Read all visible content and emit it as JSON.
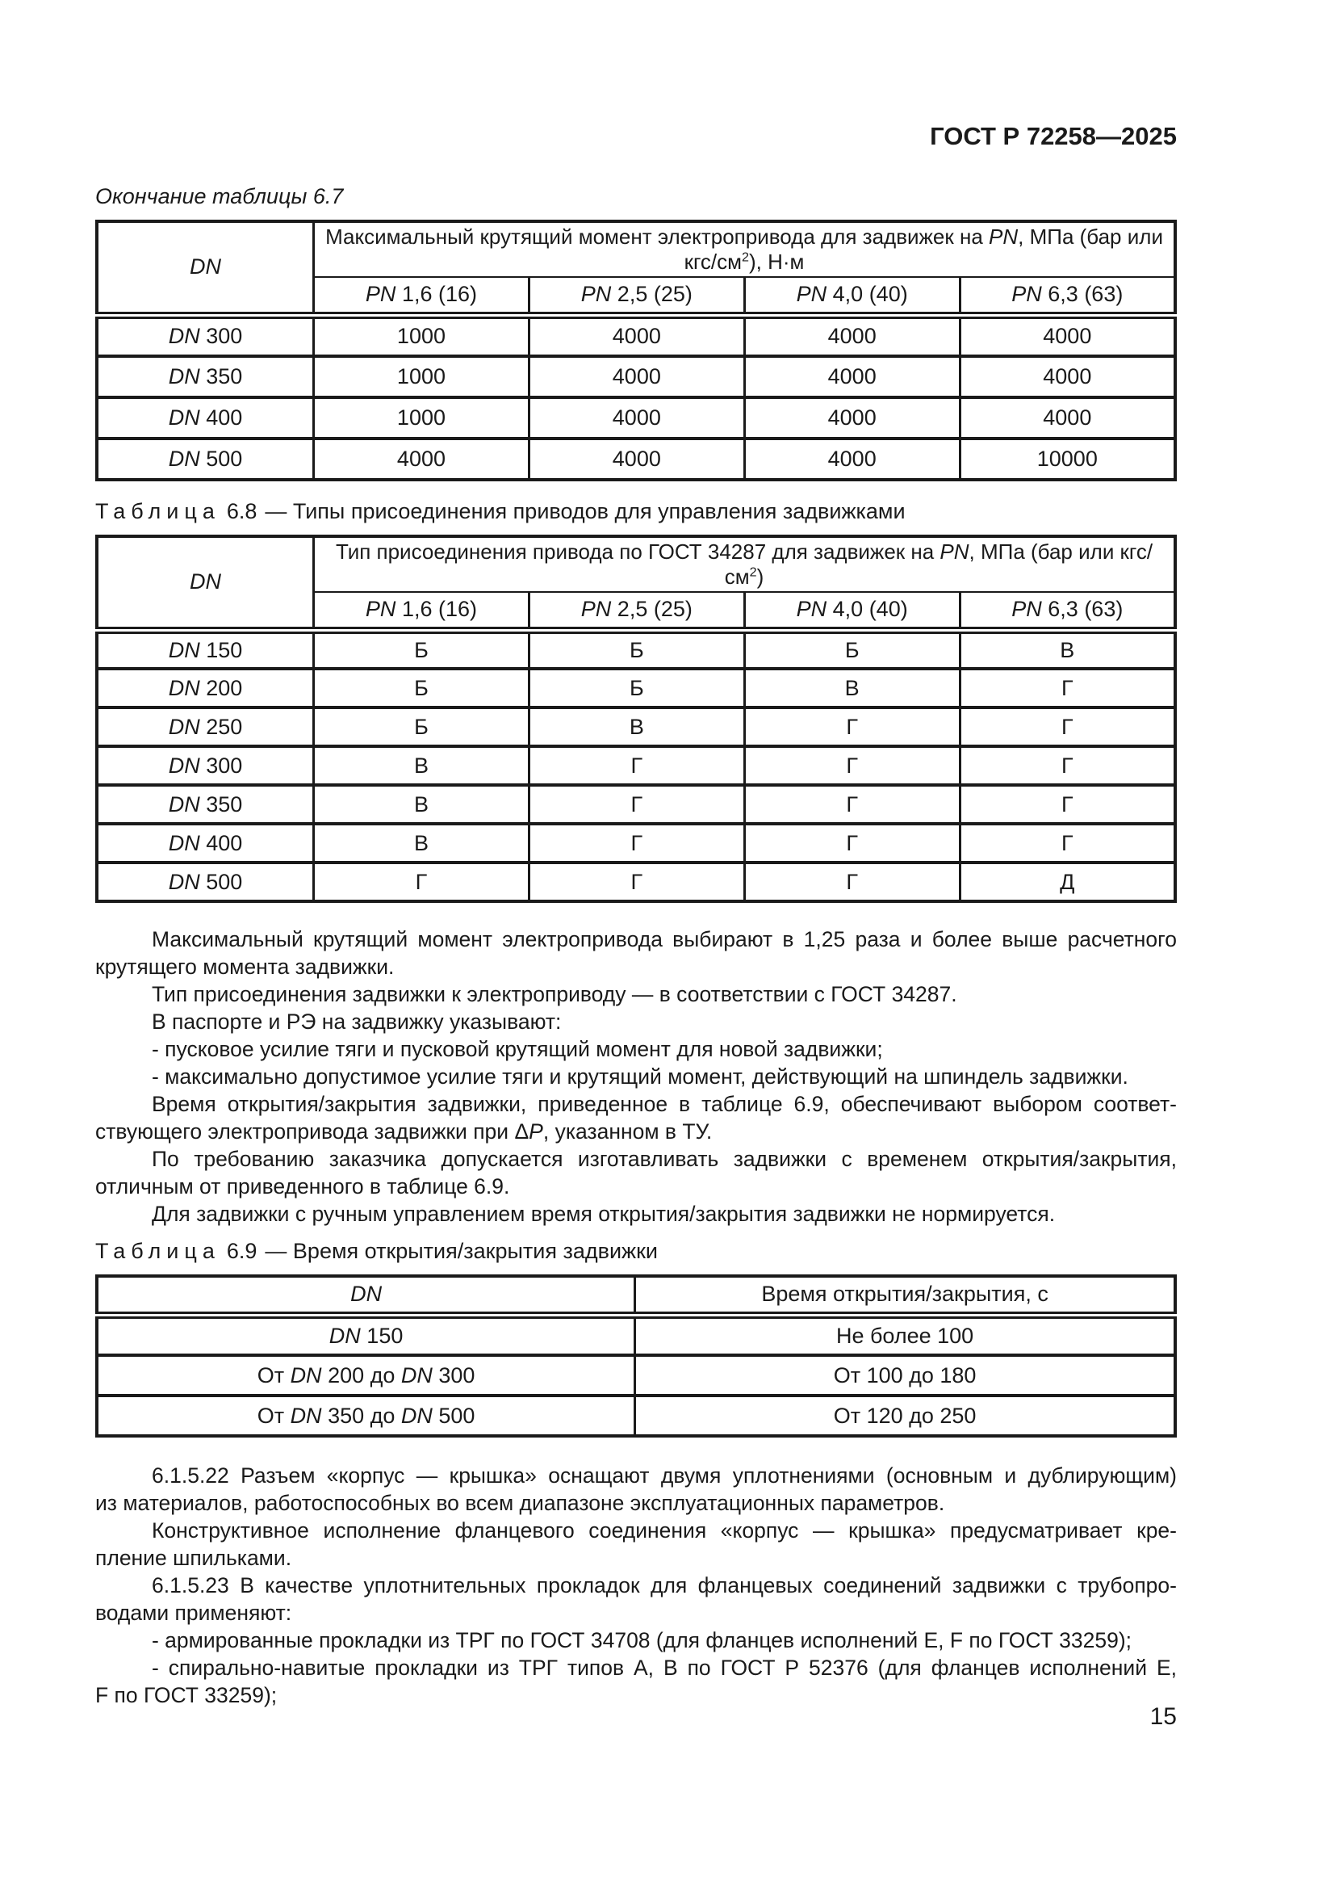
{
  "page": {
    "doc_code": "ГОСТ Р 72258—2025",
    "page_number": "15"
  },
  "labels": {
    "dn": "DN",
    "pn": "PN"
  },
  "table67": {
    "continuation_caption": "Окончание таблицы 6.7",
    "dn_header": "DN",
    "span_header": [
      {
        "t": "Максимальный крутящий момент электропривода для задвижек на "
      },
      {
        "t": "PN",
        "s": "i"
      },
      {
        "t": ", МПа (бар или кгс/см"
      },
      {
        "t": "2",
        "s": "sup"
      },
      {
        "t": "), Н·м"
      }
    ],
    "pn_columns": [
      "1,6 (16)",
      "2,5 (25)",
      "4,0 (40)",
      "6,3 (63)"
    ],
    "rows": [
      {
        "dn": "300",
        "values": [
          "1000",
          "4000",
          "4000",
          "4000"
        ]
      },
      {
        "dn": "350",
        "values": [
          "1000",
          "4000",
          "4000",
          "4000"
        ]
      },
      {
        "dn": "400",
        "values": [
          "1000",
          "4000",
          "4000",
          "4000"
        ]
      },
      {
        "dn": "500",
        "values": [
          "4000",
          "4000",
          "4000",
          "10000"
        ]
      }
    ]
  },
  "table68": {
    "caption_word": "Таблица",
    "caption_num": "6.8",
    "caption_rest": "— Типы присоединения приводов для управления задвижками",
    "dn_header": "DN",
    "span_header": [
      {
        "t": "Тип присоединения привода по ГОСТ 34287 для задвижек на "
      },
      {
        "t": "PN",
        "s": "i"
      },
      {
        "t": ", МПа (бар или кгс/см"
      },
      {
        "t": "2",
        "s": "sup"
      },
      {
        "t": ")"
      }
    ],
    "pn_columns": [
      "1,6 (16)",
      "2,5 (25)",
      "4,0 (40)",
      "6,3 (63)"
    ],
    "rows": [
      {
        "dn": "150",
        "values": [
          "Б",
          "Б",
          "Б",
          "В"
        ]
      },
      {
        "dn": "200",
        "values": [
          "Б",
          "Б",
          "В",
          "Г"
        ]
      },
      {
        "dn": "250",
        "values": [
          "Б",
          "В",
          "Г",
          "Г"
        ]
      },
      {
        "dn": "300",
        "values": [
          "В",
          "Г",
          "Г",
          "Г"
        ]
      },
      {
        "dn": "350",
        "values": [
          "В",
          "Г",
          "Г",
          "Г"
        ]
      },
      {
        "dn": "400",
        "values": [
          "В",
          "Г",
          "Г",
          "Г"
        ]
      },
      {
        "dn": "500",
        "values": [
          "Г",
          "Г",
          "Г",
          "Д"
        ]
      }
    ]
  },
  "table69": {
    "caption_word": "Таблица",
    "caption_num": "6.9",
    "caption_rest": "— Время открытия/закрытия задвижки",
    "col1_header": [
      {
        "t": "DN",
        "s": "i"
      }
    ],
    "col2_header": "Время открытия/закрытия, с",
    "rows": [
      {
        "dn": [
          {
            "t": "DN",
            "s": "i"
          },
          {
            "t": " 150"
          }
        ],
        "time": "Не более 100"
      },
      {
        "dn": [
          {
            "t": "От "
          },
          {
            "t": "DN",
            "s": "i"
          },
          {
            "t": " 200 до "
          },
          {
            "t": "DN",
            "s": "i"
          },
          {
            "t": " 300"
          }
        ],
        "time": "От 100 до 180"
      },
      {
        "dn": [
          {
            "t": "От "
          },
          {
            "t": "DN",
            "s": "i"
          },
          {
            "t": " 350 до "
          },
          {
            "t": "DN",
            "s": "i"
          },
          {
            "t": " 500"
          }
        ],
        "time": "От 120 до 250"
      }
    ]
  },
  "paragraphs_a": [
    {
      "lines": [
        [
          {
            "t": "Максимальный крутящий момент электропривода выбирают в 1,25 раза и более выше расчетного"
          }
        ],
        [
          {
            "t": "крутящего момента задвижки."
          }
        ]
      ]
    },
    {
      "lines": [
        [
          {
            "t": "Тип присоединения задвижки к электроприводу — в соответствии с ГОСТ 34287."
          }
        ]
      ]
    },
    {
      "lines": [
        [
          {
            "t": "В паспорте и РЭ на задвижку указывают:"
          }
        ]
      ]
    },
    {
      "lines": [
        [
          {
            "t": "- пусковое усилие тяги и пусковой крутящий момент для новой задвижки;"
          }
        ]
      ]
    },
    {
      "lines": [
        [
          {
            "t": "- максимально допустимое усилие тяги и крутящий момент, действующий на шпиндель задвижки."
          }
        ]
      ]
    },
    {
      "lines": [
        [
          {
            "t": "Время открытия/закрытия задвижки, приведенное в таблице 6.9, обеспечивают выбором соответ-"
          }
        ],
        [
          {
            "t": "ствующего электропривода задвижки при Δ"
          },
          {
            "t": "P",
            "s": "i"
          },
          {
            "t": ", указанном в ТУ."
          }
        ]
      ]
    },
    {
      "lines": [
        [
          {
            "t": "По требованию заказчика допускается изготавливать задвижки с временем открытия/закрытия,"
          }
        ],
        [
          {
            "t": "отличным от приведенного в таблице 6.9."
          }
        ]
      ]
    },
    {
      "lines": [
        [
          {
            "t": "Для задвижки с ручным управлением время открытия/закрытия задвижки не нормируется."
          }
        ]
      ]
    }
  ],
  "paragraphs_b": [
    {
      "lines": [
        [
          {
            "t": "6.1.5.22 Разъем «корпус — крышка» оснащают двумя уплотнениями (основным и дублирующим)"
          }
        ],
        [
          {
            "t": "из материалов, работоспособных во всем диапазоне эксплуатационных параметров."
          }
        ]
      ]
    },
    {
      "lines": [
        [
          {
            "t": "Конструктивное исполнение фланцевого соединения «корпус — крышка» предусматривает кре-"
          }
        ],
        [
          {
            "t": "пление шпильками."
          }
        ]
      ]
    },
    {
      "lines": [
        [
          {
            "t": "6.1.5.23 В качестве уплотнительных прокладок для фланцевых соединений задвижки с трубопро-"
          }
        ],
        [
          {
            "t": "водами применяют:"
          }
        ]
      ]
    },
    {
      "lines": [
        [
          {
            "t": "- армированные прокладки из ТРГ по ГОСТ 34708 (для фланцев исполнений E, F по ГОСТ 33259);"
          }
        ]
      ]
    },
    {
      "lines": [
        [
          {
            "t": "- спирально-навитые прокладки из ТРГ типов А, В по ГОСТ Р 52376 (для фланцев исполнений E,"
          }
        ],
        [
          {
            "t": "F по ГОСТ 33259);"
          }
        ]
      ]
    }
  ]
}
